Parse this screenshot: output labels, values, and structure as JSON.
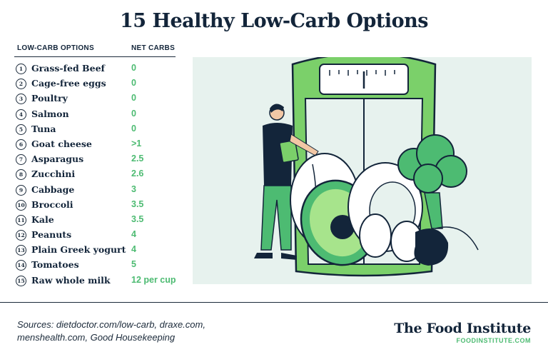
{
  "title": "15 Healthy Low-Carb Options",
  "table": {
    "header_option": "LOW-CARB OPTIONS",
    "header_carbs": "NET CARBS",
    "rows": [
      {
        "num": "1",
        "name": "Grass-fed Beef",
        "carbs": "0"
      },
      {
        "num": "2",
        "name": "Cage-free eggs",
        "carbs": "0"
      },
      {
        "num": "3",
        "name": "Poultry",
        "carbs": "0"
      },
      {
        "num": "4",
        "name": "Salmon",
        "carbs": "0"
      },
      {
        "num": "5",
        "name": "Tuna",
        "carbs": "0"
      },
      {
        "num": "6",
        "name": "Goat cheese",
        "carbs": ">1"
      },
      {
        "num": "7",
        "name": "Asparagus",
        "carbs": "2.5"
      },
      {
        "num": "8",
        "name": "Zucchini",
        "carbs": "2.6"
      },
      {
        "num": "9",
        "name": "Cabbage",
        "carbs": "3"
      },
      {
        "num": "10",
        "name": "Broccoli",
        "carbs": "3.5"
      },
      {
        "num": "11",
        "name": "Kale",
        "carbs": "3.5"
      },
      {
        "num": "12",
        "name": "Peanuts",
        "carbs": "4"
      },
      {
        "num": "13",
        "name": "Plain Greek yogurt",
        "carbs": "4"
      },
      {
        "num": "14",
        "name": "Tomatoes",
        "carbs": "5"
      },
      {
        "num": "15",
        "name": "Raw whole milk",
        "carbs": "12 per cup"
      }
    ]
  },
  "footer": {
    "sources_line1": "Sources: dietdoctor.com/low-carb, draxe.com,",
    "sources_line2": "menshealth.com, Good Housekeeping",
    "brand_name": "The Food Institute",
    "brand_url": "FOODINSTITUTE.COM"
  },
  "colors": {
    "accent_green": "#4dbb72",
    "navy": "#13253a",
    "illustration_bg": "#e7f2ee"
  }
}
